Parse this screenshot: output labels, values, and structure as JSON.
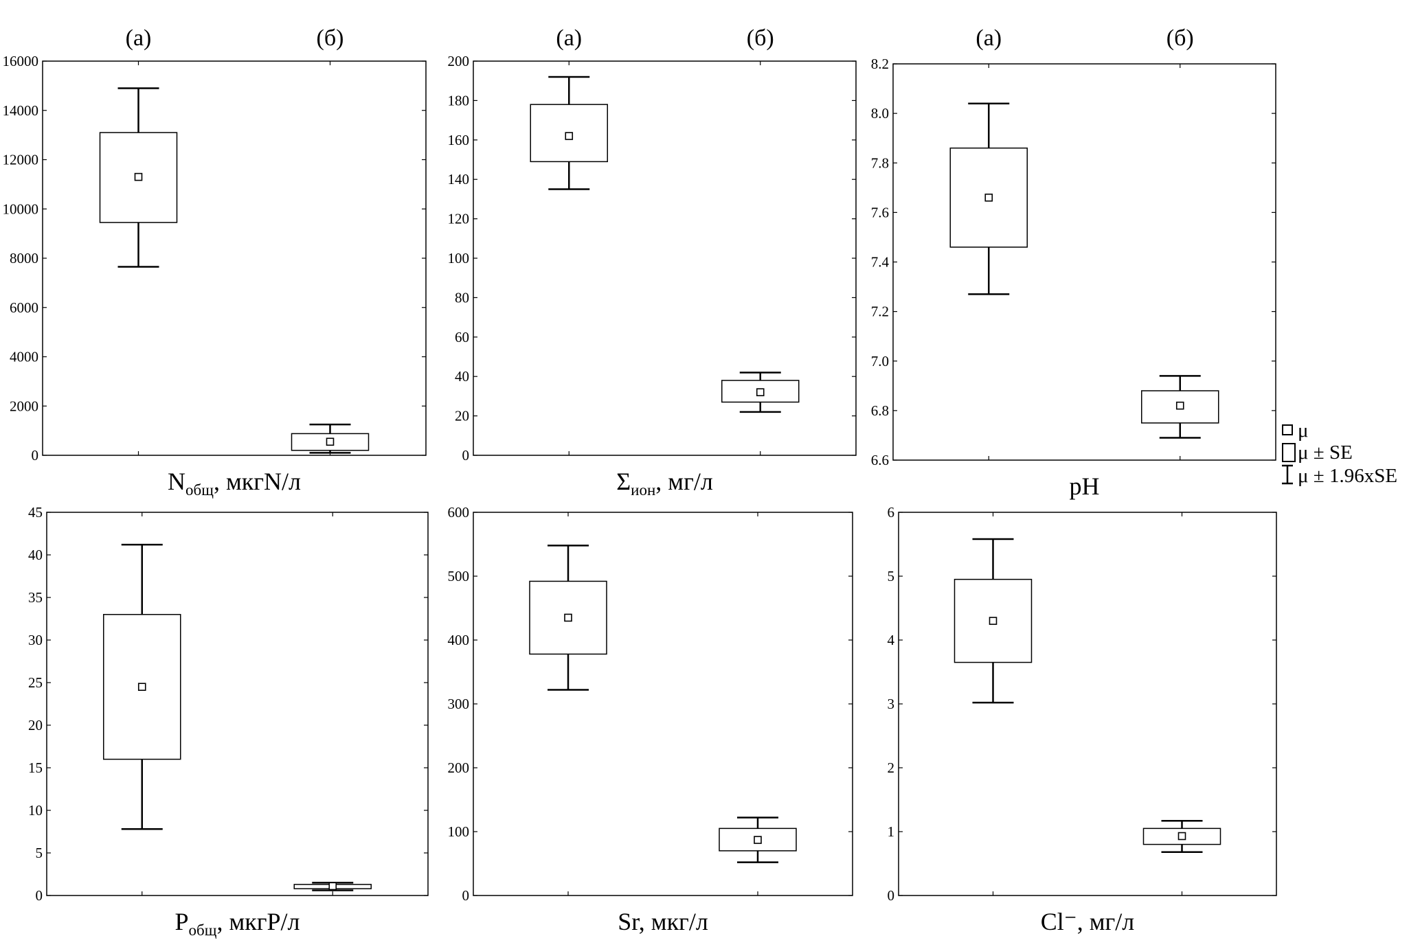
{
  "chart_data": [
    {
      "type": "box",
      "groups": [
        "(а)",
        "(б)"
      ],
      "xlabel": {
        "main": "N",
        "sub": "общ",
        "rest": ", мкгN/л"
      },
      "ylim": [
        0,
        16000
      ],
      "yticks": [
        0,
        2000,
        4000,
        6000,
        8000,
        10000,
        12000,
        14000,
        16000
      ],
      "ytick_labels": [
        "0",
        "2000",
        "4000",
        "6000",
        "8000",
        "10000",
        "12000",
        "14000",
        "16000"
      ],
      "stats": [
        {
          "mean": 11300,
          "se_low": 9450,
          "se_high": 13100,
          "ci_low": 7650,
          "ci_high": 14900
        },
        {
          "mean": 550,
          "se_low": 200,
          "se_high": 880,
          "ci_low": 100,
          "ci_high": 1250
        }
      ]
    },
    {
      "type": "box",
      "groups": [
        "(а)",
        "(б)"
      ],
      "xlabel": {
        "main": "Σ",
        "sub": "ион",
        "rest": ", мг/л"
      },
      "ylim": [
        0,
        200
      ],
      "yticks": [
        0,
        20,
        40,
        60,
        80,
        100,
        120,
        140,
        160,
        180,
        200
      ],
      "ytick_labels": [
        "0",
        "20",
        "40",
        "60",
        "80",
        "100",
        "120",
        "140",
        "160",
        "180",
        "200"
      ],
      "stats": [
        {
          "mean": 162,
          "se_low": 149,
          "se_high": 178,
          "ci_low": 135,
          "ci_high": 192
        },
        {
          "mean": 32,
          "se_low": 27,
          "se_high": 38,
          "ci_low": 22,
          "ci_high": 42
        }
      ]
    },
    {
      "type": "box",
      "groups": [
        "(а)",
        "(б)"
      ],
      "xlabel": {
        "main": "pH",
        "sub": "",
        "rest": ""
      },
      "ylim": [
        6.6,
        8.2
      ],
      "yticks": [
        6.6,
        6.8,
        7.0,
        7.2,
        7.4,
        7.6,
        7.8,
        8.0,
        8.2
      ],
      "ytick_labels": [
        "6.6",
        "6.8",
        "7.0",
        "7.2",
        "7.4",
        "7.6",
        "7.8",
        "8.0",
        "8.2"
      ],
      "stats": [
        {
          "mean": 7.66,
          "se_low": 7.46,
          "se_high": 7.86,
          "ci_low": 7.27,
          "ci_high": 8.04
        },
        {
          "mean": 6.82,
          "se_low": 6.75,
          "se_high": 6.88,
          "ci_low": 6.69,
          "ci_high": 6.94
        }
      ]
    },
    {
      "type": "box",
      "groups": [
        "(а)",
        "(б)"
      ],
      "xlabel": {
        "main": "P",
        "sub": "общ",
        "rest": ", мкгP/л"
      },
      "ylim": [
        0,
        45
      ],
      "yticks": [
        0,
        5,
        10,
        15,
        20,
        25,
        30,
        35,
        40,
        45
      ],
      "ytick_labels": [
        "0",
        "5",
        "10",
        "15",
        "20",
        "25",
        "30",
        "35",
        "40",
        "45"
      ],
      "stats": [
        {
          "mean": 24.5,
          "se_low": 16,
          "se_high": 33,
          "ci_low": 7.8,
          "ci_high": 41.2
        },
        {
          "mean": 1.1,
          "se_low": 0.8,
          "se_high": 1.3,
          "ci_low": 0.6,
          "ci_high": 1.5
        }
      ]
    },
    {
      "type": "box",
      "groups": [
        "(а)",
        "(б)"
      ],
      "xlabel": {
        "main": "Sr",
        "sub": "",
        "rest": ", мкг/л"
      },
      "ylim": [
        0,
        600
      ],
      "yticks": [
        0,
        100,
        200,
        300,
        400,
        500,
        600
      ],
      "ytick_labels": [
        "0",
        "100",
        "200",
        "300",
        "400",
        "500",
        "600"
      ],
      "stats": [
        {
          "mean": 435,
          "se_low": 378,
          "se_high": 492,
          "ci_low": 322,
          "ci_high": 548
        },
        {
          "mean": 87,
          "se_low": 70,
          "se_high": 105,
          "ci_low": 52,
          "ci_high": 122
        }
      ]
    },
    {
      "type": "box",
      "groups": [
        "(а)",
        "(б)"
      ],
      "xlabel": {
        "main": "Cl⁻",
        "sub": "",
        "rest": ", мг/л"
      },
      "ylim": [
        0,
        6
      ],
      "yticks": [
        0,
        1,
        2,
        3,
        4,
        5,
        6
      ],
      "ytick_labels": [
        "0",
        "1",
        "2",
        "3",
        "4",
        "5",
        "6"
      ],
      "stats": [
        {
          "mean": 4.3,
          "se_low": 3.65,
          "se_high": 4.95,
          "ci_low": 3.02,
          "ci_high": 5.58
        },
        {
          "mean": 0.93,
          "se_low": 0.8,
          "se_high": 1.05,
          "ci_low": 0.68,
          "ci_high": 1.17
        }
      ]
    }
  ],
  "legend": {
    "items": [
      {
        "marker": "mean-square",
        "label": "μ"
      },
      {
        "marker": "box",
        "label": "μ ± SE"
      },
      {
        "marker": "whisker",
        "label": "μ ± 1.96xSE"
      }
    ]
  }
}
